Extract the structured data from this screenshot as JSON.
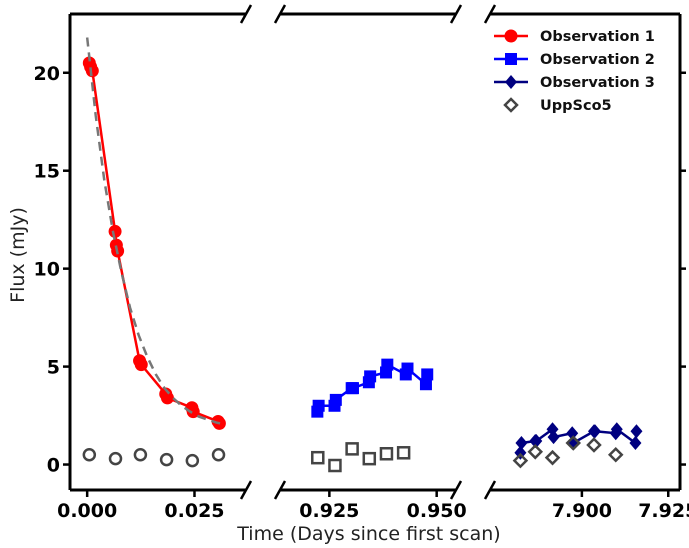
{
  "chart_data": {
    "type": "scatter",
    "xlabel": "Time (Days since first scan)",
    "ylabel": "Flux (mJy)",
    "ylim": [
      -1.3,
      23
    ],
    "yticks": [
      0,
      5,
      10,
      15,
      20
    ],
    "ytick_labels": [
      "0",
      "5",
      "10",
      "15",
      "20"
    ],
    "broken_x_axis": true,
    "legend_position": "upper-right",
    "panels": [
      {
        "xlim": [
          -0.004,
          0.037
        ],
        "xticks": [
          0.0,
          0.025
        ],
        "xtick_labels": [
          "0.000",
          "0.025"
        ]
      },
      {
        "xlim": [
          0.9135,
          0.9545
        ],
        "xticks": [
          0.925,
          0.95
        ],
        "xtick_labels": [
          "0.925",
          "0.950"
        ]
      },
      {
        "xlim": [
          7.8734,
          7.9284
        ],
        "xticks": [
          7.9,
          7.925
        ],
        "xtick_labels": [
          "7.900",
          "7.925"
        ]
      }
    ],
    "series": [
      {
        "name": "Observation 1",
        "color": "#ff0000",
        "marker": "circle",
        "panel": 0,
        "x": [
          0.0005,
          0.0008,
          0.0012,
          0.0065,
          0.0068,
          0.0071,
          0.0122,
          0.0126,
          0.0183,
          0.0187,
          0.0244,
          0.0247,
          0.0305,
          0.0308
        ],
        "y": [
          20.5,
          20.3,
          20.1,
          11.9,
          11.2,
          10.9,
          5.3,
          5.1,
          3.6,
          3.4,
          2.9,
          2.7,
          2.2,
          2.1
        ]
      },
      {
        "name": "Observation 2",
        "color": "#0000ff",
        "marker": "square",
        "panel": 1,
        "x": [
          0.9222,
          0.9225,
          0.9262,
          0.9265,
          0.9302,
          0.9305,
          0.9342,
          0.9345,
          0.9382,
          0.9385,
          0.9428,
          0.9432,
          0.9475,
          0.9478
        ],
        "y": [
          2.7,
          3.0,
          3.0,
          3.3,
          3.9,
          3.9,
          4.2,
          4.5,
          4.7,
          5.1,
          4.6,
          4.9,
          4.1,
          4.6
        ]
      },
      {
        "name": "Observation 3",
        "color": "#000080",
        "marker": "diamond",
        "panel": 2,
        "x": [
          7.8822,
          7.8825,
          7.8865,
          7.8868,
          7.8915,
          7.8918,
          7.8972,
          7.8975,
          7.9035,
          7.9038,
          7.9098,
          7.9101,
          7.9155,
          7.9158
        ],
        "y": [
          0.6,
          1.1,
          1.2,
          1.2,
          1.8,
          1.4,
          1.6,
          1.1,
          1.7,
          1.7,
          1.6,
          1.8,
          1.1,
          1.7
        ]
      },
      {
        "name": "UppSco5",
        "color": "#444444",
        "marker": "open-diamond",
        "points": [
          {
            "panel": 0,
            "marker": "open-circle",
            "x": 0.0005,
            "y": 0.5
          },
          {
            "panel": 0,
            "marker": "open-circle",
            "x": 0.0066,
            "y": 0.3
          },
          {
            "panel": 0,
            "marker": "open-circle",
            "x": 0.0124,
            "y": 0.5
          },
          {
            "panel": 0,
            "marker": "open-circle",
            "x": 0.0185,
            "y": 0.25
          },
          {
            "panel": 0,
            "marker": "open-circle",
            "x": 0.0245,
            "y": 0.2
          },
          {
            "panel": 0,
            "marker": "open-circle",
            "x": 0.0306,
            "y": 0.5
          },
          {
            "panel": 1,
            "marker": "open-square",
            "x": 0.9223,
            "y": 0.35
          },
          {
            "panel": 1,
            "marker": "open-square",
            "x": 0.9263,
            "y": -0.05
          },
          {
            "panel": 1,
            "marker": "open-square",
            "x": 0.9303,
            "y": 0.8
          },
          {
            "panel": 1,
            "marker": "open-square",
            "x": 0.9343,
            "y": 0.3
          },
          {
            "panel": 1,
            "marker": "open-square",
            "x": 0.9383,
            "y": 0.55
          },
          {
            "panel": 1,
            "marker": "open-square",
            "x": 0.9423,
            "y": 0.6
          },
          {
            "panel": 2,
            "marker": "open-diamond",
            "x": 7.8822,
            "y": 0.2
          },
          {
            "panel": 2,
            "marker": "open-diamond",
            "x": 7.8865,
            "y": 0.65
          },
          {
            "panel": 2,
            "marker": "open-diamond",
            "x": 7.8915,
            "y": 0.35
          },
          {
            "panel": 2,
            "marker": "open-diamond",
            "x": 7.8975,
            "y": 1.1
          },
          {
            "panel": 2,
            "marker": "open-diamond",
            "x": 7.9035,
            "y": 1.0
          },
          {
            "panel": 2,
            "marker": "open-diamond",
            "x": 7.9098,
            "y": 0.5
          }
        ]
      }
    ],
    "fit_curve": {
      "color": "#777777",
      "style": "dashed",
      "panel": 0,
      "x": [
        0.0,
        0.002,
        0.004,
        0.006,
        0.008,
        0.01,
        0.012,
        0.014,
        0.016,
        0.018,
        0.02,
        0.022,
        0.024,
        0.026,
        0.028,
        0.03,
        0.031
      ],
      "y": [
        21.8,
        17.8,
        14.5,
        11.9,
        9.8,
        8.0,
        6.6,
        5.5,
        4.6,
        3.9,
        3.4,
        3.0,
        2.7,
        2.45,
        2.3,
        2.15,
        2.1
      ]
    }
  }
}
